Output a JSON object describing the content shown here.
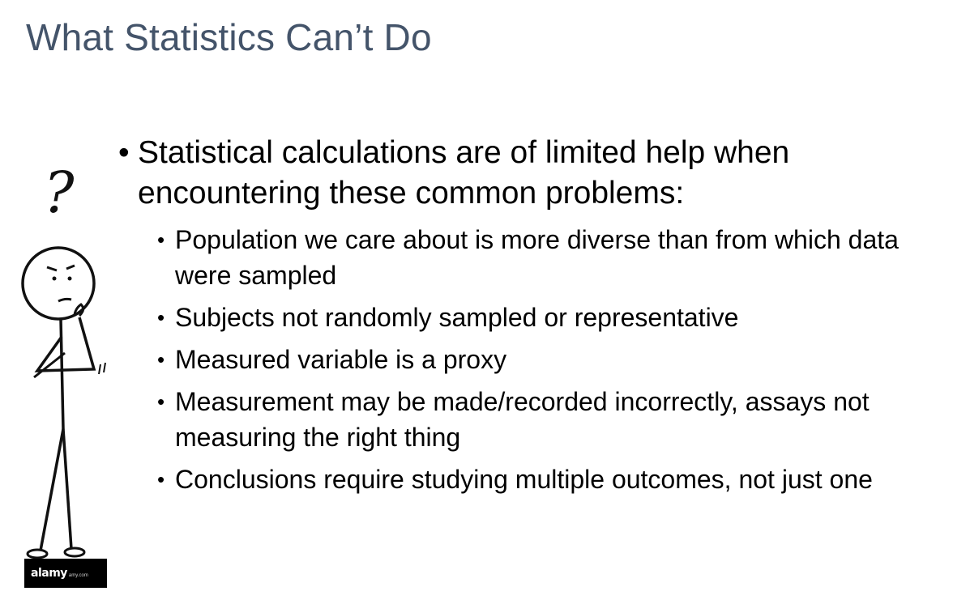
{
  "slide": {
    "title": "What Statistics Can’t Do",
    "main_point": "Statistical calculations are of limited help when encountering these common problems:",
    "sub_points": [
      "Population we care about is more diverse than from which data were sampled",
      "Subjects not randomly sampled or representative",
      "Measured variable is a proxy",
      "Measurement may be made/recorded incorrectly, assays not measuring the right thing",
      "Conclusions require studying multiple outcomes, not just one"
    ],
    "bullet_glyph": "•"
  },
  "illustration": {
    "question_mark": "?",
    "watermark_brand": "alamy",
    "watermark_small": "amy.com"
  },
  "colors": {
    "title": "#44546a",
    "text": "#000000",
    "background": "#ffffff"
  }
}
